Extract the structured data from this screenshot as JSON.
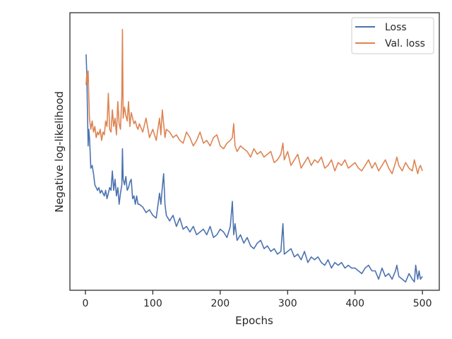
{
  "chart_data": {
    "type": "line",
    "xlabel": "Epochs",
    "ylabel": "Negative log-likelihood",
    "xlim": [
      -23,
      525
    ],
    "ylim": [
      0,
      100
    ],
    "xticks": [
      0,
      100,
      200,
      300,
      400,
      500
    ],
    "yticks_visible": false,
    "grid": false,
    "legend_position": "top-right",
    "series": [
      {
        "name": "Loss",
        "color": "#4c72b0",
        "x": [
          1,
          2,
          3,
          4,
          5,
          6,
          7,
          8,
          10,
          12,
          14,
          16,
          18,
          20,
          22,
          24,
          26,
          28,
          30,
          32,
          34,
          36,
          38,
          40,
          42,
          44,
          46,
          48,
          50,
          52,
          54,
          55,
          56,
          58,
          60,
          62,
          64,
          66,
          68,
          70,
          72,
          74,
          76,
          78,
          80,
          85,
          90,
          95,
          100,
          105,
          110,
          112,
          114,
          116,
          118,
          120,
          125,
          130,
          135,
          140,
          145,
          150,
          155,
          160,
          165,
          170,
          175,
          180,
          185,
          190,
          195,
          200,
          205,
          210,
          215,
          218,
          220,
          222,
          225,
          230,
          235,
          240,
          245,
          250,
          255,
          260,
          265,
          270,
          275,
          280,
          285,
          290,
          293,
          295,
          300,
          305,
          310,
          315,
          320,
          325,
          330,
          335,
          340,
          345,
          350,
          355,
          360,
          365,
          370,
          375,
          380,
          385,
          390,
          395,
          400,
          405,
          410,
          415,
          420,
          425,
          430,
          435,
          440,
          445,
          450,
          455,
          460,
          462,
          465,
          470,
          475,
          480,
          485,
          488,
          490,
          493,
          495,
          497,
          500
        ],
        "y": [
          85,
          78,
          65,
          52,
          58,
          55,
          50,
          44,
          45,
          42,
          38,
          37,
          36,
          37,
          35,
          36,
          35,
          34,
          36,
          33,
          35,
          37,
          36,
          43,
          36,
          40,
          34,
          37,
          31,
          35,
          38,
          51,
          40,
          38,
          41,
          36,
          37,
          39,
          40,
          33,
          34,
          31,
          34,
          31,
          31,
          30,
          28,
          29,
          27,
          26,
          35,
          31,
          37,
          42,
          31,
          27,
          25,
          27,
          23,
          26,
          22,
          23,
          21,
          23,
          20,
          21,
          22,
          20,
          23,
          19,
          20,
          22,
          21,
          19,
          23,
          32,
          20,
          24,
          18,
          20,
          17,
          19,
          16,
          15,
          17,
          18,
          15,
          16,
          14,
          15,
          13,
          14,
          24,
          13,
          14,
          15,
          12,
          13,
          11,
          14,
          10,
          12,
          11,
          12,
          10,
          9,
          11,
          8,
          10,
          9,
          10,
          8,
          9,
          8,
          8,
          7,
          6,
          8,
          9,
          7,
          7,
          4,
          8,
          5,
          6,
          4,
          7,
          9,
          5,
          4,
          3,
          6,
          4,
          3,
          9,
          4,
          7,
          4,
          5
        ]
      },
      {
        "name": "Val. loss",
        "color": "#dd8452",
        "x": [
          1,
          2,
          3,
          4,
          5,
          6,
          7,
          8,
          10,
          12,
          14,
          16,
          18,
          20,
          22,
          24,
          26,
          28,
          30,
          32,
          34,
          36,
          38,
          40,
          42,
          44,
          46,
          48,
          50,
          52,
          54,
          55,
          56,
          58,
          60,
          62,
          64,
          66,
          68,
          70,
          72,
          74,
          76,
          78,
          80,
          85,
          90,
          95,
          100,
          105,
          110,
          112,
          114,
          116,
          118,
          120,
          125,
          130,
          135,
          140,
          145,
          150,
          155,
          160,
          165,
          170,
          175,
          180,
          185,
          190,
          195,
          200,
          205,
          210,
          215,
          218,
          220,
          222,
          225,
          230,
          235,
          240,
          245,
          250,
          255,
          260,
          265,
          270,
          275,
          280,
          285,
          290,
          293,
          295,
          300,
          305,
          310,
          315,
          320,
          325,
          330,
          335,
          340,
          345,
          350,
          355,
          360,
          365,
          370,
          375,
          380,
          385,
          390,
          395,
          400,
          405,
          410,
          415,
          420,
          425,
          430,
          435,
          440,
          445,
          450,
          455,
          460,
          462,
          465,
          470,
          475,
          480,
          485,
          488,
          490,
          493,
          495,
          497,
          500
        ],
        "y": [
          74,
          78,
          75,
          79,
          70,
          62,
          60,
          58,
          61,
          57,
          59,
          55,
          57,
          56,
          58,
          54,
          57,
          56,
          61,
          59,
          71,
          58,
          57,
          65,
          59,
          62,
          56,
          68,
          60,
          58,
          70,
          94,
          62,
          66,
          63,
          61,
          68,
          59,
          64,
          62,
          60,
          61,
          59,
          58,
          60,
          57,
          62,
          55,
          58,
          54,
          62,
          56,
          65,
          60,
          55,
          58,
          57,
          55,
          56,
          54,
          53,
          57,
          55,
          52,
          54,
          57,
          53,
          54,
          52,
          55,
          56,
          52,
          51,
          53,
          54,
          55,
          60,
          52,
          50,
          52,
          51,
          50,
          48,
          51,
          49,
          50,
          48,
          49,
          50,
          46,
          47,
          49,
          53,
          47,
          50,
          45,
          47,
          49,
          44,
          46,
          48,
          45,
          47,
          46,
          48,
          44,
          45,
          47,
          43,
          46,
          45,
          47,
          44,
          45,
          46,
          44,
          43,
          45,
          47,
          44,
          46,
          43,
          45,
          47,
          44,
          42,
          46,
          48,
          45,
          43,
          46,
          44,
          43,
          47,
          45,
          42,
          44,
          45,
          43
        ]
      }
    ]
  }
}
